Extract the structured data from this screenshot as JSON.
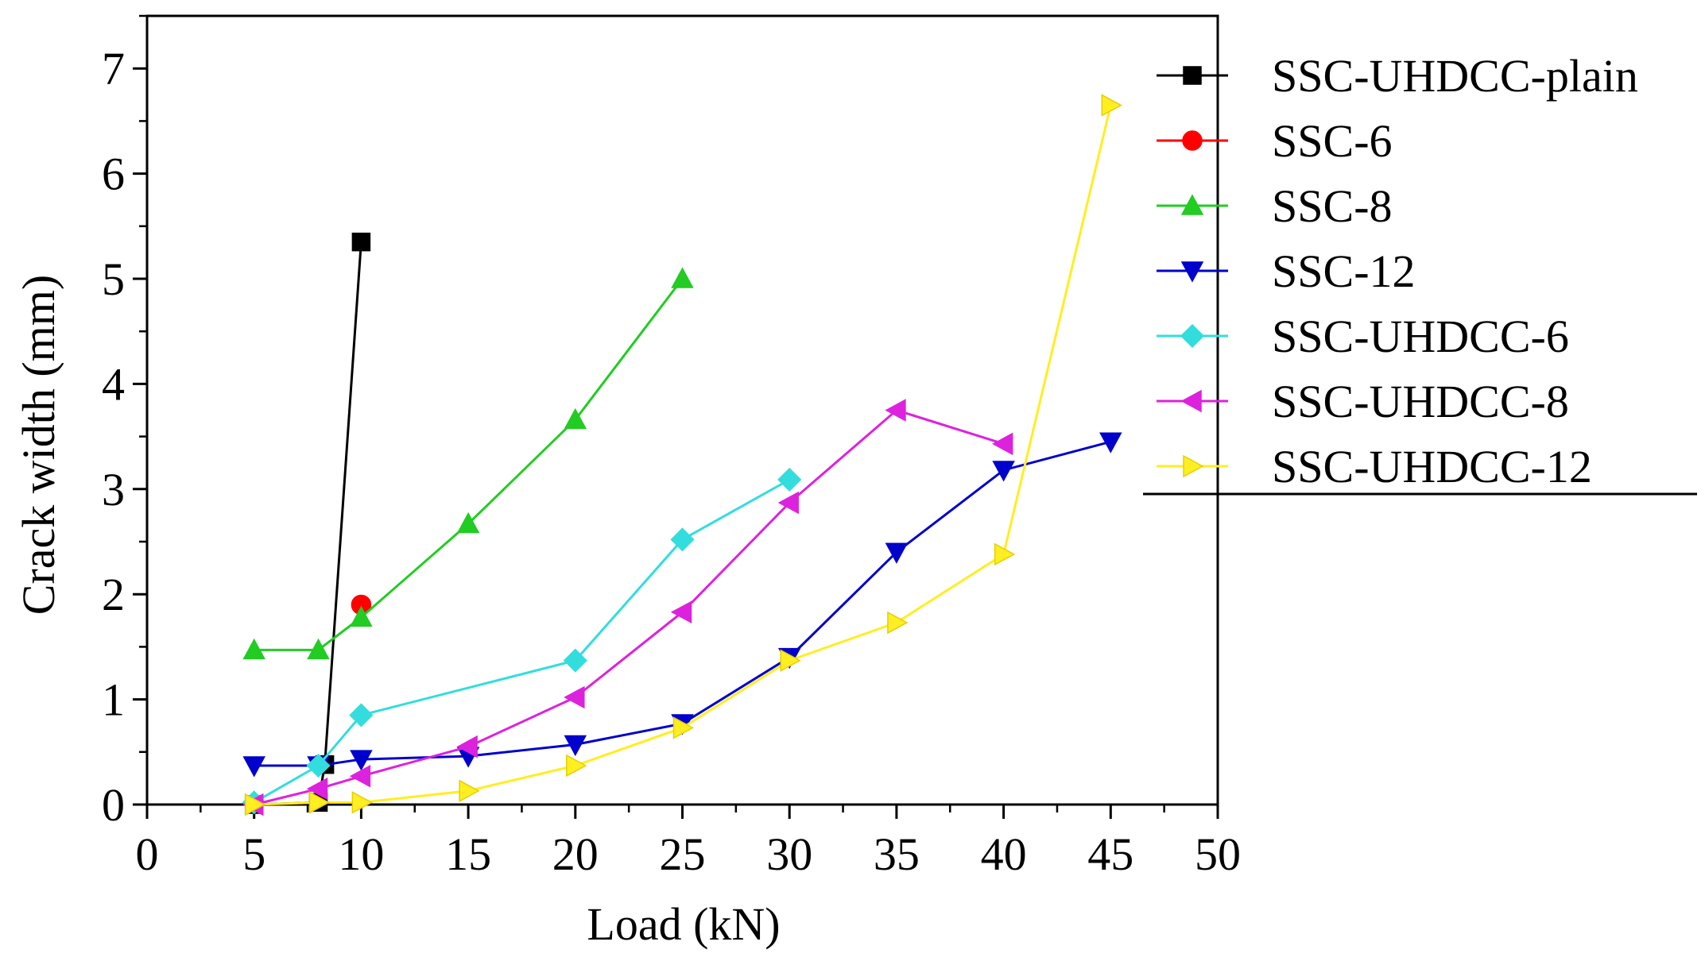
{
  "chart_data": {
    "type": "line",
    "title": "",
    "xlabel": "Load (kN)",
    "ylabel": "Crack width (mm)",
    "xlim": [
      0,
      50
    ],
    "ylim": [
      0,
      7.5
    ],
    "xticks": [
      0,
      5,
      10,
      15,
      20,
      25,
      30,
      35,
      40,
      45,
      50
    ],
    "yticks": [
      0,
      1,
      2,
      3,
      4,
      5,
      6,
      7
    ],
    "grid": false,
    "legend_position": "top-right",
    "series": [
      {
        "name": "SSC-UHDCC-plain",
        "color": "#000000",
        "marker": "square",
        "x": [
          5,
          8,
          8.3,
          10
        ],
        "y": [
          0.0,
          0.02,
          0.38,
          5.35
        ]
      },
      {
        "name": "SSC-6",
        "color": "#ff0000",
        "marker": "circle",
        "x": [
          10
        ],
        "y": [
          1.9
        ]
      },
      {
        "name": "SSC-8",
        "color": "#22cc22",
        "marker": "triangle-up",
        "x": [
          5,
          8,
          10,
          15,
          20,
          25
        ],
        "y": [
          1.47,
          1.47,
          1.78,
          2.67,
          3.66,
          5.0
        ]
      },
      {
        "name": "SSC-12",
        "color": "#0000cc",
        "marker": "triangle-down",
        "x": [
          5,
          8,
          10,
          15,
          20,
          25,
          30,
          35,
          40,
          45
        ],
        "y": [
          0.37,
          0.37,
          0.43,
          0.46,
          0.57,
          0.77,
          1.4,
          2.4,
          3.18,
          3.45
        ]
      },
      {
        "name": "SSC-UHDCC-6",
        "color": "#33dddd",
        "marker": "diamond",
        "x": [
          5,
          8,
          10,
          20,
          25,
          30
        ],
        "y": [
          0.02,
          0.37,
          0.85,
          1.37,
          2.52,
          3.09
        ]
      },
      {
        "name": "SSC-UHDCC-8",
        "color": "#dd22dd",
        "marker": "triangle-left",
        "x": [
          5,
          8,
          10,
          15,
          20,
          25,
          30,
          35,
          40
        ],
        "y": [
          0.0,
          0.15,
          0.27,
          0.55,
          1.02,
          1.83,
          2.87,
          3.75,
          3.43
        ]
      },
      {
        "name": "SSC-UHDCC-12",
        "color": "#ffee22",
        "marker": "triangle-right",
        "x": [
          5,
          8,
          10,
          15,
          20,
          25,
          30,
          35,
          40,
          45
        ],
        "y": [
          0.0,
          0.02,
          0.02,
          0.13,
          0.37,
          0.73,
          1.37,
          1.73,
          2.38,
          6.65
        ]
      }
    ]
  }
}
